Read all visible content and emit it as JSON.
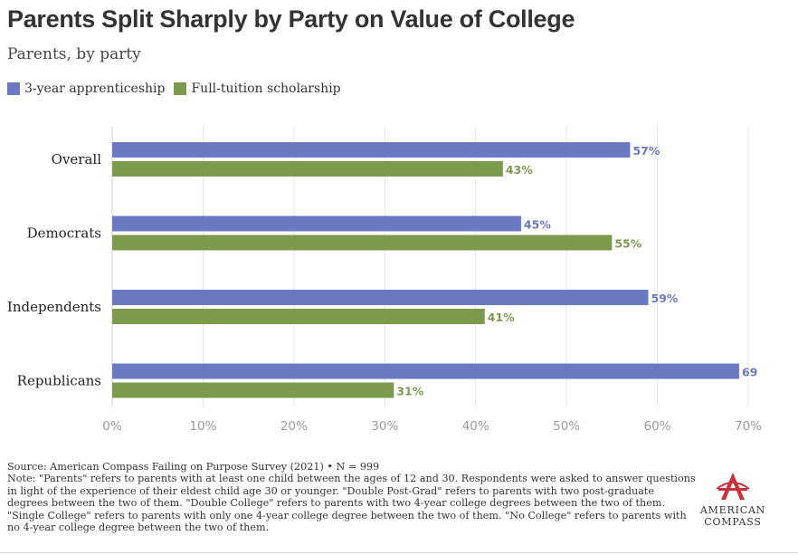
{
  "header": {
    "title": "Parents Split Sharply by Party on Value of College",
    "subtitle": "Parents, by party"
  },
  "colors": {
    "series1": "#6b78c2",
    "series2": "#7c9a4e",
    "axis_text": "#9a9a9a",
    "grid": "#e3e3e3",
    "logo_red": "#c8323c"
  },
  "chart_data": {
    "type": "bar",
    "orientation": "horizontal",
    "title": "Parents Split Sharply by Party on Value of College",
    "subtitle": "Parents, by party",
    "categories": [
      "Overall",
      "Democrats",
      "Independents",
      "Republicans"
    ],
    "series": [
      {
        "name": "3-year apprenticeship",
        "values": [
          57,
          45,
          59,
          69
        ],
        "labels": [
          "57%",
          "45%",
          "59%",
          "69"
        ]
      },
      {
        "name": "Full-tuition scholarship",
        "values": [
          43,
          55,
          41,
          31
        ],
        "labels": [
          "43%",
          "55%",
          "41%",
          "31%"
        ]
      }
    ],
    "xlim": [
      0,
      70
    ],
    "xticks": [
      0,
      10,
      20,
      30,
      40,
      50,
      60,
      70
    ],
    "xtick_labels": [
      "0%",
      "10%",
      "20%",
      "30%",
      "40%",
      "50%",
      "60%",
      "70%"
    ],
    "xlabel": "",
    "ylabel": "",
    "grid": true,
    "legend_position": "top-left"
  },
  "footer": {
    "source": "Source: American Compass Failing on Purpose Survey (2021) • N = 999",
    "note": "Note: \"Parents\" refers to parents with at least one child between the ages of 12 and 30. Respondents were asked to answer questions in light of the experience of their eldest child age 30 or younger. \"Double Post-Grad\" refers to parents with two post-graduate degrees between the two of them. \"Double College\" refers to parents with two 4-year college degrees between the two of them. \"Single College\" refers to parents with only one 4-year college degree between the two of them. \"No College\" refers to parents with no 4-year college degree between the two of them."
  },
  "logo": {
    "line1": "AMERICAN",
    "line2": "COMPASS"
  }
}
